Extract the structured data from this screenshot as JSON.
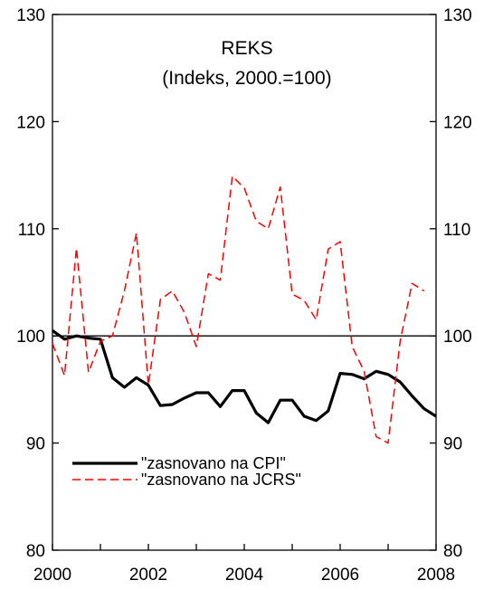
{
  "chart_data": {
    "type": "line",
    "title": "REKS",
    "subtitle": "(Indeks, 2000.=100)",
    "xlabel": "",
    "ylabel": "",
    "xlim": [
      2000,
      2008
    ],
    "ylim": [
      80,
      130
    ],
    "x_ticks": [
      "2000",
      "2002",
      "2004",
      "2006",
      "2008"
    ],
    "y_ticks": [
      "80",
      "90",
      "100",
      "110",
      "120",
      "130"
    ],
    "y_ticks_right": [
      "80",
      "90",
      "100",
      "110",
      "120",
      "130"
    ],
    "reference_line": 100,
    "legend_position": "bottom-left",
    "grid": false,
    "series": [
      {
        "name": "\"zasnovano na CPI\"",
        "color": "#000000",
        "style": "solid",
        "x": [
          2000.0,
          2000.25,
          2000.5,
          2000.75,
          2001.0,
          2001.25,
          2001.5,
          2001.75,
          2002.0,
          2002.25,
          2002.5,
          2002.75,
          2003.0,
          2003.25,
          2003.5,
          2003.75,
          2004.0,
          2004.25,
          2004.5,
          2004.75,
          2005.0,
          2005.25,
          2005.5,
          2005.75,
          2006.0,
          2006.25,
          2006.5,
          2006.75,
          2007.0,
          2007.25,
          2007.5,
          2007.75,
          2008.0
        ],
        "values": [
          100.5,
          99.7,
          100.0,
          99.8,
          99.7,
          96.1,
          95.2,
          96.1,
          95.4,
          93.5,
          93.6,
          94.2,
          94.7,
          94.7,
          93.4,
          94.9,
          94.9,
          92.8,
          91.9,
          94.0,
          94.0,
          92.5,
          92.1,
          93.0,
          96.5,
          96.4,
          96.0,
          96.7,
          96.4,
          95.7,
          94.4,
          93.2,
          92.5
        ]
      },
      {
        "name": "\"zasnovano na JCRS\"",
        "color": "#ff0000",
        "style": "dashed",
        "x": [
          2000.0,
          2000.25,
          2000.5,
          2000.75,
          2001.0,
          2001.25,
          2001.5,
          2001.75,
          2002.0,
          2002.25,
          2002.5,
          2002.75,
          2003.0,
          2003.25,
          2003.5,
          2003.75,
          2004.0,
          2004.25,
          2004.5,
          2004.75,
          2005.0,
          2005.25,
          2005.5,
          2005.75,
          2006.0,
          2006.25,
          2006.5,
          2006.75,
          2007.0,
          2007.25,
          2007.5,
          2007.75
        ],
        "values": [
          99.3,
          96.3,
          108.2,
          96.6,
          99.5,
          100.0,
          104.2,
          109.6,
          95.4,
          103.4,
          104.2,
          102.2,
          99.0,
          105.8,
          105.2,
          114.9,
          113.8,
          110.7,
          110.0,
          113.9,
          103.9,
          103.3,
          101.5,
          108.1,
          108.8,
          99.0,
          96.7,
          90.6,
          90.0,
          99.5,
          104.9,
          104.2
        ]
      }
    ]
  }
}
